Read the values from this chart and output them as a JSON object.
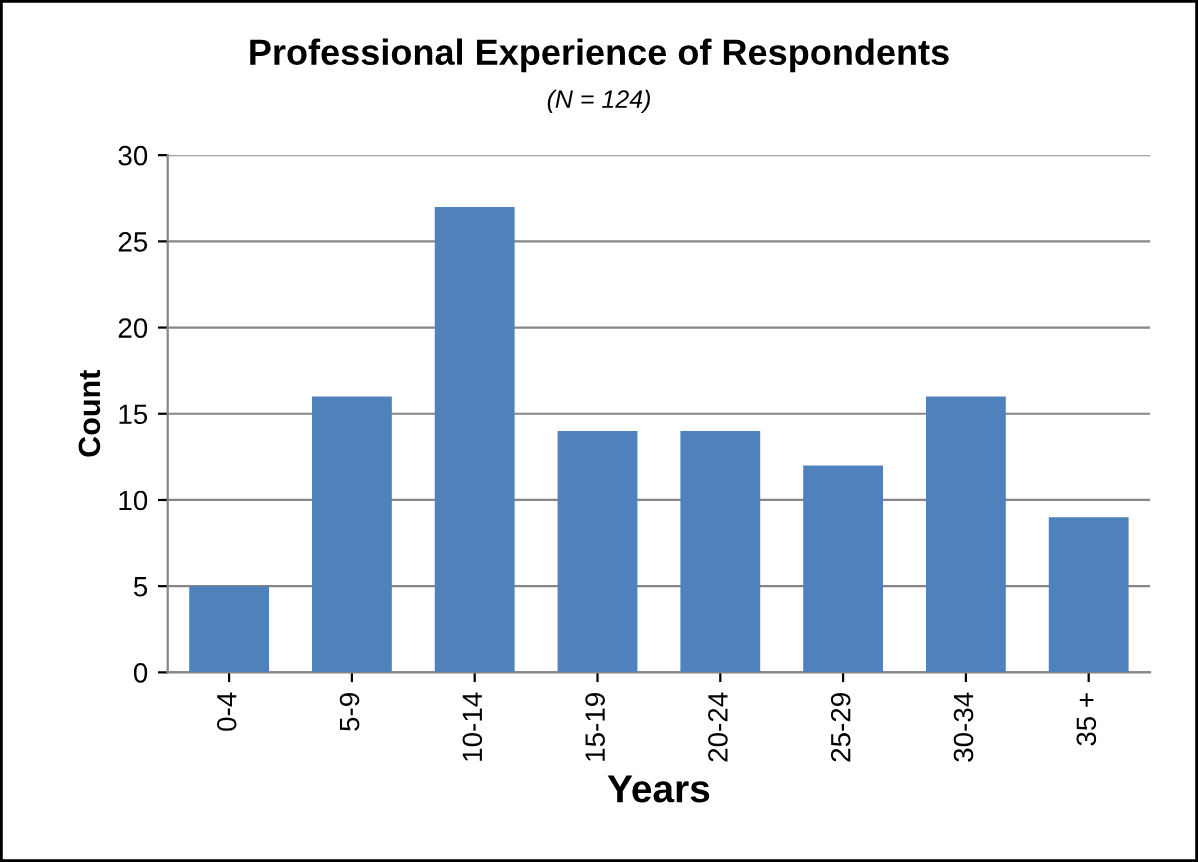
{
  "chart_data": {
    "type": "bar",
    "title": "Professional Experience of Respondents",
    "subtitle": "(N = 124)",
    "xlabel": "Years",
    "ylabel": "Count",
    "categories": [
      "0-4",
      "5-9",
      "10-14",
      "15-19",
      "20-24",
      "25-29",
      "30-34",
      "35 +"
    ],
    "values": [
      5,
      16,
      27,
      14,
      14,
      12,
      16,
      9
    ],
    "color": "#4f81bd",
    "ylim": [
      0,
      30
    ],
    "yticks": [
      0,
      5,
      10,
      15,
      20,
      25,
      30
    ],
    "grid": "y"
  }
}
